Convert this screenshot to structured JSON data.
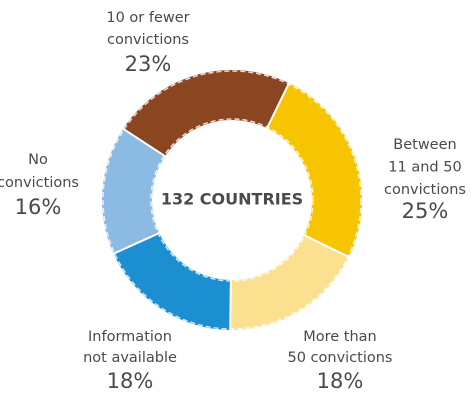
{
  "chart_data": {
    "type": "donut",
    "center_label": "132 COUNTRIES",
    "categories": [
      [
        "Between",
        "11 and 50",
        "convictions"
      ],
      [
        "More than",
        "50 convictions"
      ],
      [
        "Information",
        "not available"
      ],
      [
        "No",
        "convictions"
      ],
      [
        "10 or fewer",
        "convictions"
      ]
    ],
    "values": [
      25,
      18,
      18,
      16,
      23
    ],
    "value_labels": [
      "25%",
      "18%",
      "18%",
      "16%",
      "23%"
    ],
    "colors": [
      "#f6c400",
      "#fbe08f",
      "#1b8fd0",
      "#8bbae3",
      "#8a4521"
    ]
  }
}
